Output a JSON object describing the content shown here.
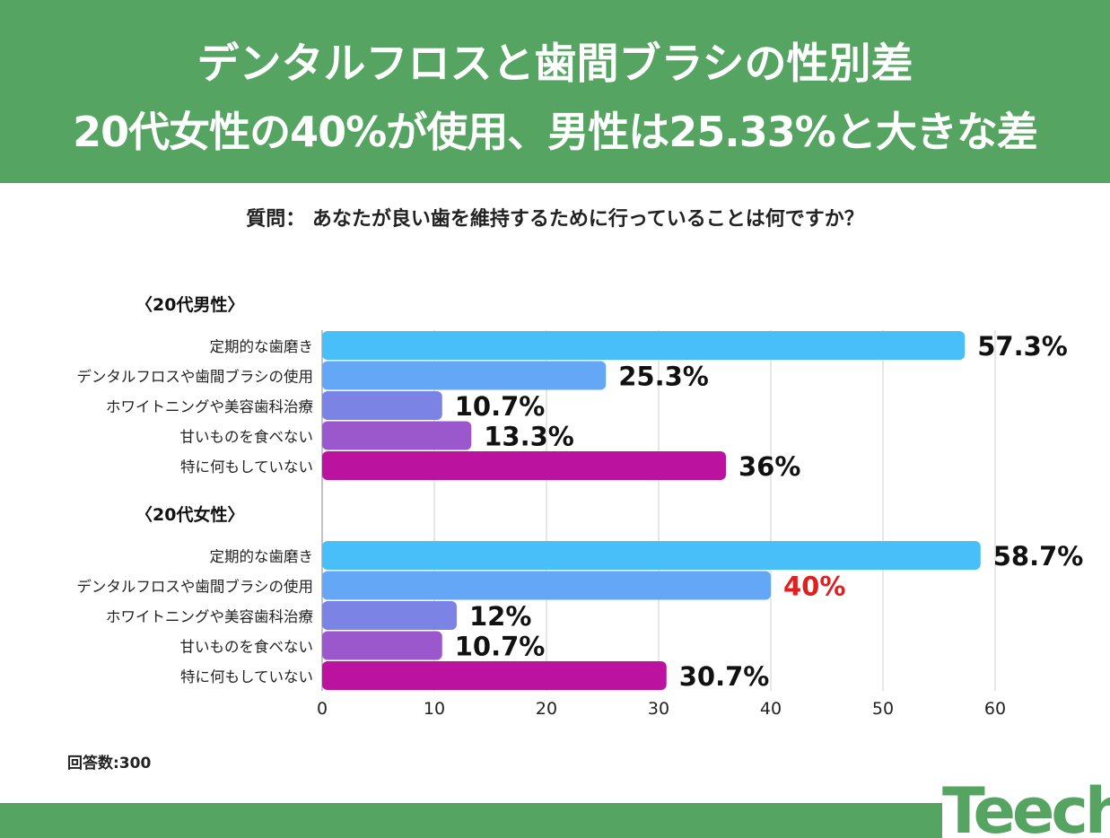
{
  "header": {
    "title_line1": "デンタルフロスと歯間ブラシの性別差",
    "title_line2": "20代女性の40%が使用、男性は25.33%と大きな差"
  },
  "question": "質問： あなたが良い歯を維持するために行っていることは何ですか？",
  "response_count": "回答数:300",
  "logo": {
    "text": "Teech"
  },
  "colors": {
    "header_green": "#55a462",
    "highlight_red": "#e02020",
    "bar_colors": [
      "#49bffa",
      "#64a7f7",
      "#7b84e4",
      "#9a58cc",
      "#bb139f"
    ]
  },
  "chart_data": {
    "type": "bar",
    "orientation": "horizontal",
    "xlim": [
      0,
      60
    ],
    "xticks": [
      "0",
      "10",
      "20",
      "30",
      "40",
      "50",
      "60"
    ],
    "groups": [
      {
        "name": "〈20代男性〉",
        "categories": [
          "定期的な歯磨き",
          "デンタルフロスや歯間ブラシの使用",
          "ホワイトニングや美容歯科治療",
          "甘いものを食べない",
          "特に何もしていない"
        ],
        "values": [
          57.3,
          25.3,
          10.7,
          13.3,
          36
        ],
        "labels": [
          "57.3%",
          "25.3%",
          "10.7%",
          "13.3%",
          "36%"
        ],
        "highlight": [
          false,
          false,
          false,
          false,
          false
        ]
      },
      {
        "name": "〈20代女性〉",
        "categories": [
          "定期的な歯磨き",
          "デンタルフロスや歯間ブラシの使用",
          "ホワイトニングや美容歯科治療",
          "甘いものを食べない",
          "特に何もしていない"
        ],
        "values": [
          58.7,
          40,
          12,
          10.7,
          30.7
        ],
        "labels": [
          "58.7%",
          "40%",
          "12%",
          "10.7%",
          "30.7%"
        ],
        "highlight": [
          false,
          true,
          false,
          false,
          false
        ]
      }
    ]
  }
}
